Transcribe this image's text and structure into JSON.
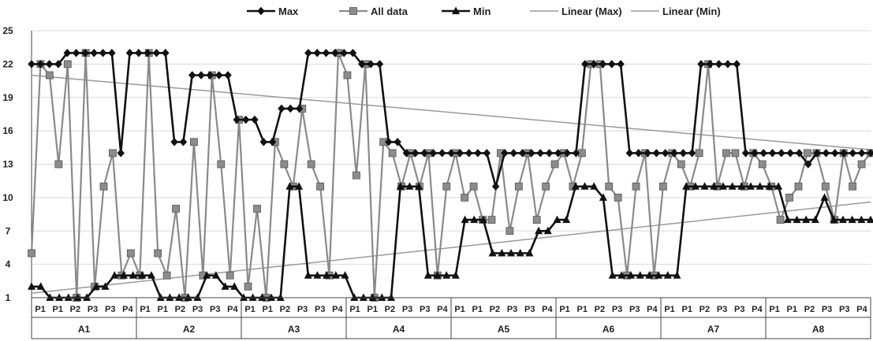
{
  "chart_data": {
    "type": "line",
    "ylim": [
      1,
      25
    ],
    "yticks": [
      1,
      4,
      7,
      10,
      13,
      16,
      19,
      22,
      25
    ],
    "grid": true,
    "legend_position": "top",
    "colors": {
      "max": "#1a1a1a",
      "all": "#888888",
      "min": "#1a1a1a",
      "trend_max": "#9a9a9a",
      "trend_min": "#9a9a9a",
      "grid": "#d8d8d8",
      "axis": "#444444"
    },
    "groups": [
      {
        "label": "A1",
        "categories": [
          "P1",
          "P1",
          "P2",
          "P3",
          "P3",
          "P4"
        ]
      },
      {
        "label": "A2",
        "categories": [
          "P1",
          "P1",
          "P2",
          "P3",
          "P3",
          "P4"
        ]
      },
      {
        "label": "A3",
        "categories": [
          "P1",
          "P1",
          "P2",
          "P3",
          "P3",
          "P4"
        ]
      },
      {
        "label": "A4",
        "categories": [
          "P1",
          "P1",
          "P2",
          "P3",
          "P3",
          "P4"
        ]
      },
      {
        "label": "A5",
        "categories": [
          "P1",
          "P1",
          "P2",
          "P3",
          "P3",
          "P4"
        ]
      },
      {
        "label": "A6",
        "categories": [
          "P1",
          "P1",
          "P2",
          "P3",
          "P3",
          "P4"
        ]
      },
      {
        "label": "A7",
        "categories": [
          "P1",
          "P1",
          "P2",
          "P3",
          "P3",
          "P4"
        ]
      },
      {
        "label": "A8",
        "categories": [
          "P1",
          "P1",
          "P2",
          "P3",
          "P3",
          "P4"
        ]
      }
    ],
    "series": [
      {
        "name": "Max",
        "marker": "diamond",
        "values": [
          22,
          22,
          22,
          22,
          23,
          23,
          23,
          23,
          23,
          23,
          14,
          23,
          23,
          23,
          23,
          23,
          15,
          15,
          21,
          21,
          21,
          21,
          21,
          17,
          17,
          17,
          15,
          15,
          18,
          18,
          18,
          23,
          23,
          23,
          23,
          23,
          23,
          22,
          22,
          22,
          15,
          15,
          14,
          14,
          14,
          14,
          14,
          14,
          14,
          14,
          14,
          14,
          11,
          14,
          14,
          14,
          14,
          14,
          14,
          14,
          14,
          14,
          22,
          22,
          22,
          22,
          22,
          14,
          14,
          14,
          14,
          14,
          14,
          14,
          14,
          22,
          22,
          22,
          22,
          22,
          14,
          14,
          14,
          14,
          14,
          14,
          14,
          13,
          14,
          14,
          14,
          14,
          14,
          14,
          14
        ]
      },
      {
        "name": "All data",
        "marker": "square",
        "values": [
          5,
          22,
          21,
          13,
          22,
          1,
          23,
          2,
          11,
          14,
          3,
          5,
          3,
          23,
          5,
          3,
          9,
          1,
          15,
          3,
          21,
          13,
          3,
          17,
          2,
          9,
          1,
          15,
          13,
          11,
          18,
          13,
          11,
          3,
          23,
          21,
          12,
          22,
          1,
          15,
          14,
          11,
          14,
          11,
          14,
          3,
          11,
          14,
          10,
          11,
          8,
          8,
          14,
          7,
          11,
          14,
          8,
          11,
          13,
          14,
          11,
          14,
          22,
          22,
          11,
          10,
          3,
          11,
          14,
          3,
          11,
          14,
          13,
          11,
          14,
          22,
          11,
          14,
          14,
          11,
          14,
          13,
          11,
          8,
          10,
          11,
          14,
          14,
          11,
          8,
          14,
          11,
          13,
          14
        ]
      },
      {
        "name": "Min",
        "marker": "triangle",
        "values": [
          2,
          2,
          1,
          1,
          1,
          1,
          1,
          2,
          2,
          3,
          3,
          3,
          3,
          3,
          1,
          1,
          1,
          1,
          1,
          3,
          3,
          2,
          2,
          1,
          1,
          1,
          1,
          1,
          11,
          11,
          3,
          3,
          3,
          3,
          3,
          1,
          1,
          1,
          1,
          1,
          11,
          11,
          11,
          3,
          3,
          3,
          3,
          8,
          8,
          8,
          5,
          5,
          5,
          5,
          5,
          7,
          7,
          8,
          8,
          11,
          11,
          11,
          10,
          3,
          3,
          3,
          3,
          3,
          3,
          3,
          3,
          11,
          11,
          11,
          11,
          11,
          11,
          11,
          11,
          11,
          11,
          11,
          8,
          8,
          8,
          8,
          10,
          8,
          8,
          8,
          8,
          8
        ]
      },
      {
        "name": "Linear (Max)",
        "values": [
          21.0,
          14.3
        ]
      },
      {
        "name": "Linear (Min)",
        "values": [
          1.4,
          9.6
        ]
      }
    ]
  }
}
